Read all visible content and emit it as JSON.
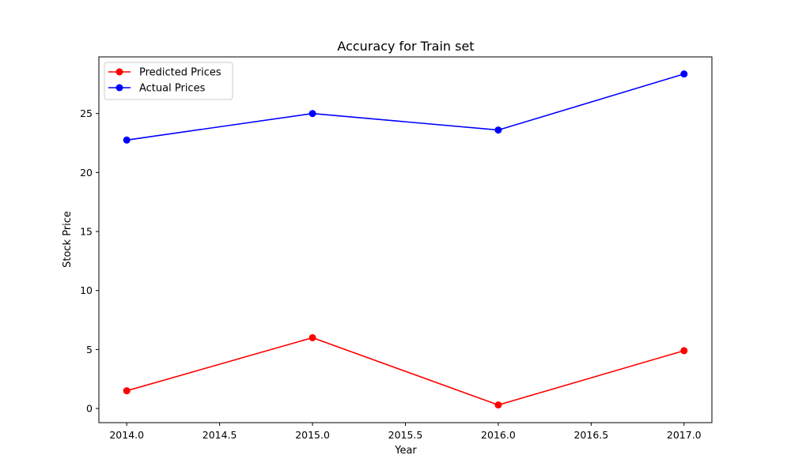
{
  "chart_data": {
    "type": "line",
    "title": "Accuracy for Train set",
    "xlabel": "Year",
    "ylabel": "Stock Price",
    "x": [
      2014,
      2015,
      2016,
      2017
    ],
    "series": [
      {
        "name": "Predicted Prices",
        "color": "#ff0000",
        "marker": "circle",
        "values": [
          1.5,
          6.0,
          0.3,
          4.9
        ]
      },
      {
        "name": "Actual Prices",
        "color": "#0000ff",
        "marker": "circle",
        "values": [
          22.75,
          25.0,
          23.6,
          28.35
        ]
      }
    ],
    "xlim": [
      2013.85,
      2017.15
    ],
    "ylim": [
      -1.2,
      29.8
    ],
    "xticks": [
      2014.0,
      2014.5,
      2015.0,
      2015.5,
      2016.0,
      2016.5,
      2017.0
    ],
    "xtick_labels": [
      "2014.0",
      "2014.5",
      "2015.0",
      "2015.5",
      "2016.0",
      "2016.5",
      "2017.0"
    ],
    "yticks": [
      0,
      5,
      10,
      15,
      20,
      25
    ],
    "ytick_labels": [
      "0",
      "5",
      "10",
      "15",
      "20",
      "25"
    ],
    "grid": false,
    "legend_position": "top-left"
  }
}
